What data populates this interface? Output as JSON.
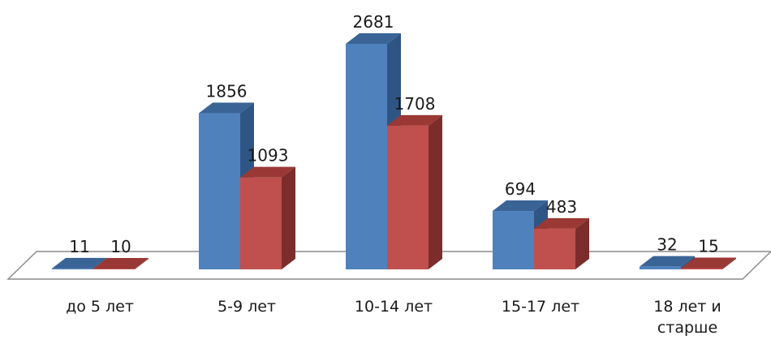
{
  "chart_data": {
    "type": "bar",
    "title": "",
    "xlabel": "",
    "ylabel": "",
    "grid": false,
    "legend": "none",
    "categories": [
      [
        "до 5 лет"
      ],
      [
        "5-9 лет"
      ],
      [
        "10-14 лет"
      ],
      [
        "15-17 лет"
      ],
      [
        "18 лет и",
        "старше"
      ]
    ],
    "series": [
      {
        "values": [
          11,
          1856,
          2681,
          694,
          32
        ]
      },
      {
        "values": [
          10,
          1093,
          1708,
          483,
          15
        ]
      }
    ],
    "ylim": [
      0,
      2681
    ]
  },
  "colors": {
    "series": [
      {
        "front": "#4f81bd",
        "side": "#2f5584",
        "top": "#3a6496"
      },
      {
        "front": "#c0504d",
        "side": "#7c2d2b",
        "top": "#9a3835"
      }
    ],
    "floor_stroke": "#8c8c8c"
  }
}
